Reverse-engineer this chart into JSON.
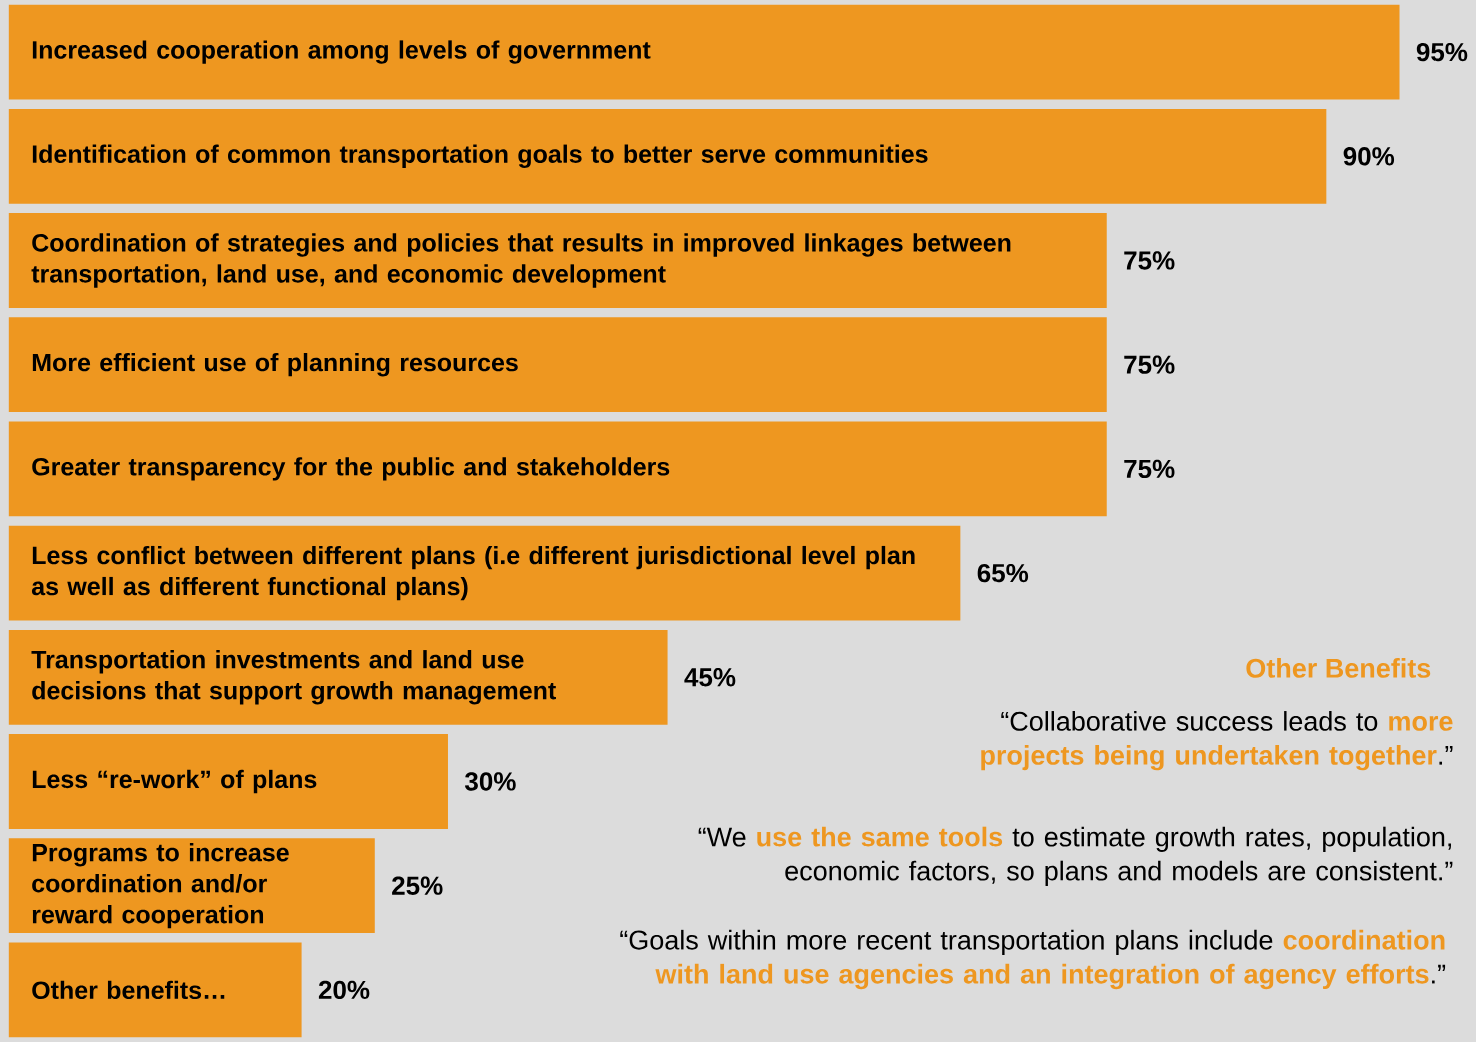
{
  "chart_data": {
    "type": "bar",
    "orientation": "horizontal",
    "color": "#ee9720",
    "categories": [
      "Increased cooperation among levels of government",
      "Identification of common transportation goals to better serve communities",
      "Coordination of strategies and policies that results in improved linkages between transportation, land use, and economic development",
      "More efficient use of planning resources",
      "Greater transparency for the public and stakeholders",
      "Less conflict between different plans (i.e different jurisdictional level plan as well as different functional plans)",
      "Transportation investments and land use decisions that support growth management",
      "Less “re-work” of plans",
      "Programs to increase coordination and/or reward cooperation",
      "Other benefits…"
    ],
    "values": [
      95,
      90,
      75,
      75,
      75,
      65,
      45,
      30,
      25,
      20
    ],
    "value_labels": [
      "95%",
      "90%",
      "75%",
      "75%",
      "75%",
      "65%",
      "45%",
      "30%",
      "25%",
      "20%"
    ],
    "annotations": [
      "Other Benefits",
      "“Collaborative success leads to **more projects being undertaken together**.”",
      "“We **use the same tools** to estimate growth rates, population, economic factors, so plans and models are consistent.”",
      "“Goals within more recent transportation plans include **coordination with land use agencies and an integration of agency efforts**.”"
    ]
  }
}
